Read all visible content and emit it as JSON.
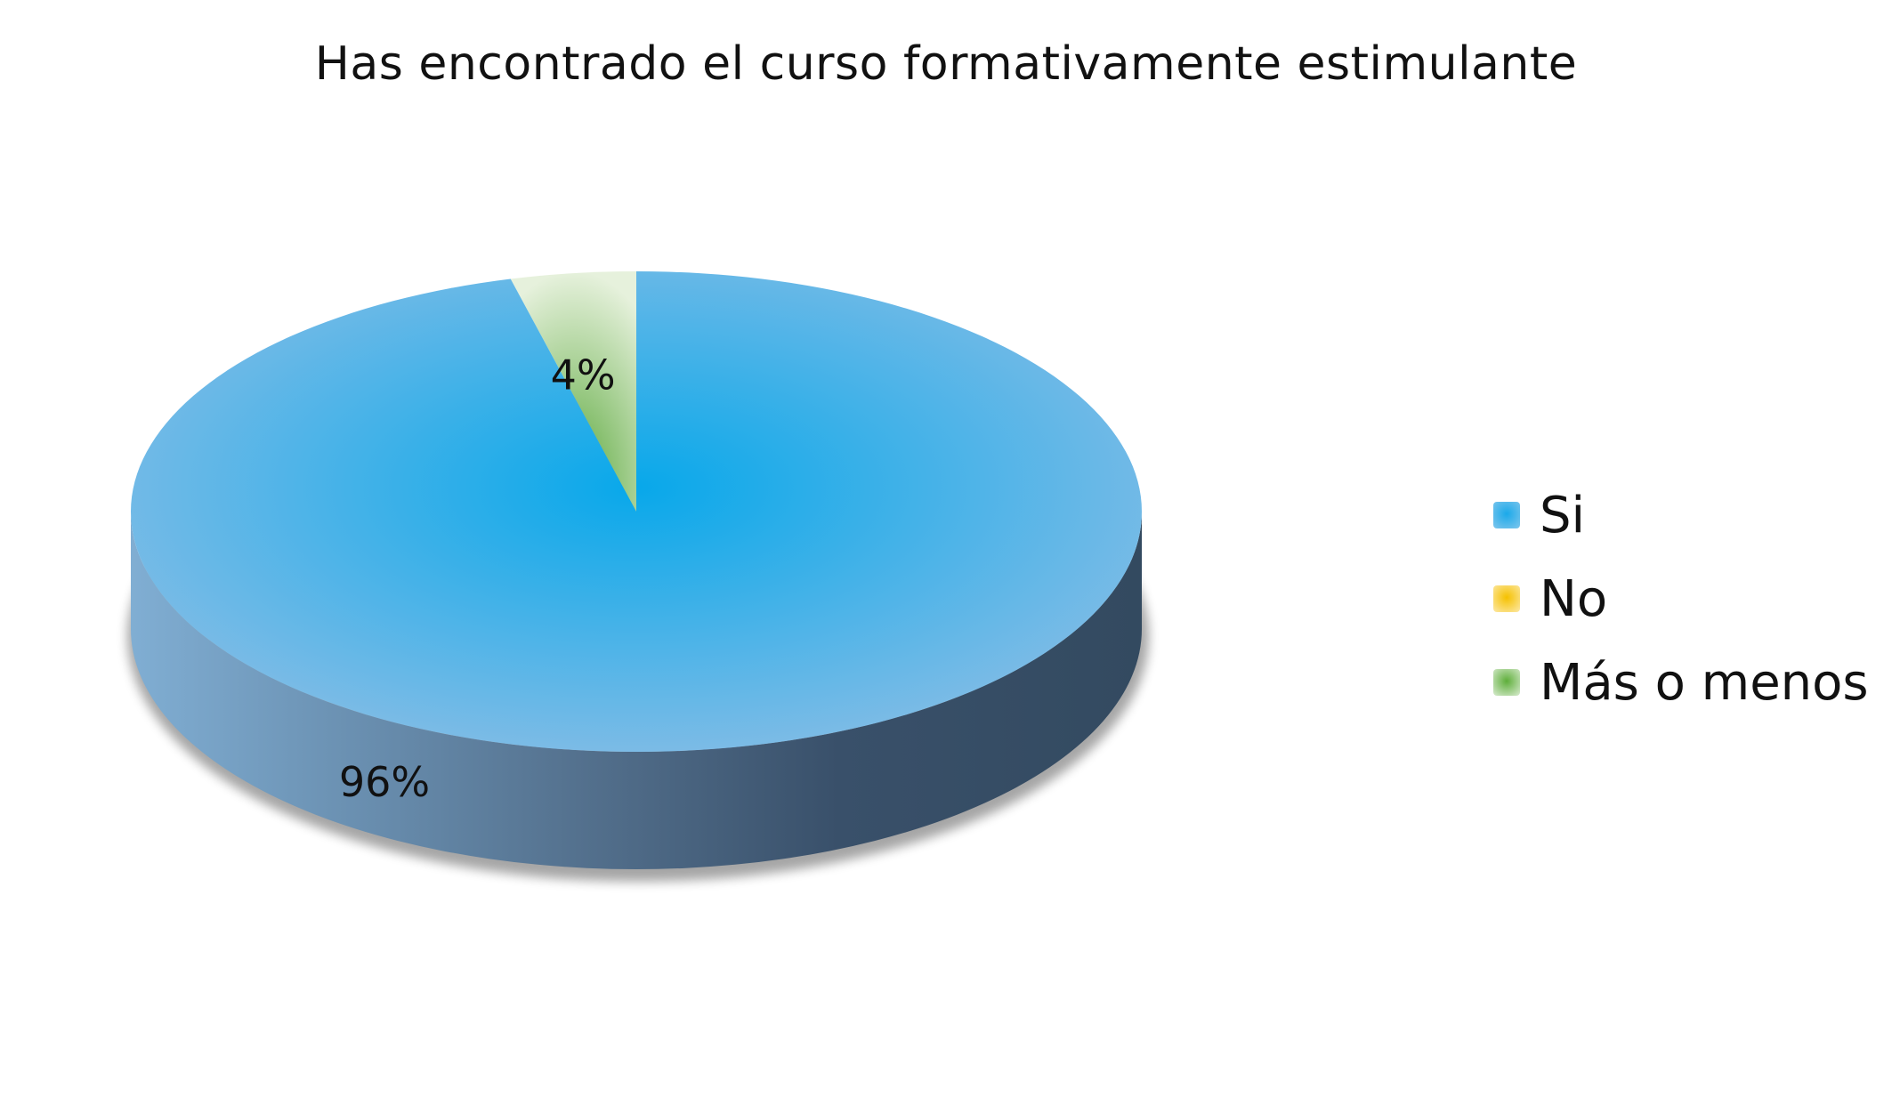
{
  "chart_data": {
    "type": "pie",
    "title": "Has encontrado el curso formativamente estimulante",
    "categories": [
      "Si",
      "No",
      "Más o menos"
    ],
    "values": [
      96,
      0,
      4
    ],
    "data_labels": [
      "96%",
      "",
      "4%"
    ],
    "colors": [
      "#29aee8",
      "#f6c400",
      "#6cb33f"
    ],
    "legend_position": "right",
    "style": "3d"
  }
}
